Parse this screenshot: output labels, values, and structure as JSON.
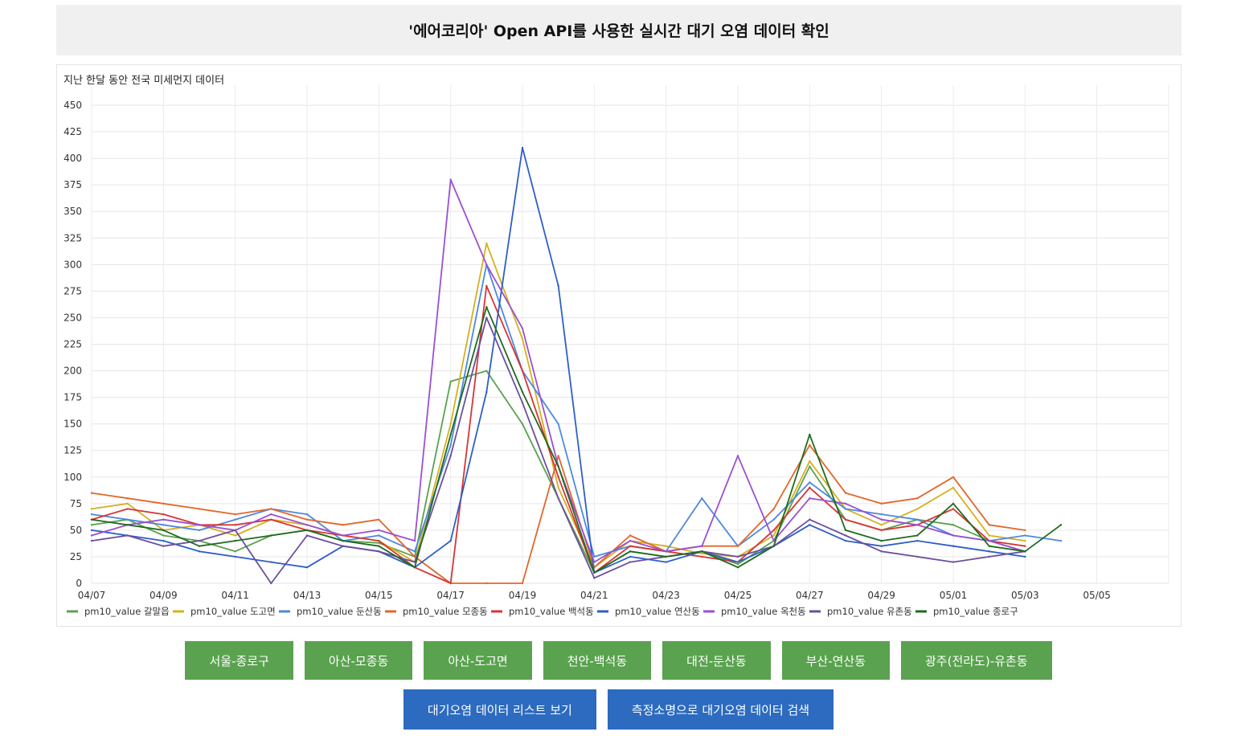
{
  "page_title": "'에어코리아' Open API를 사용한 실시간 대기 오염 데이터 확인",
  "buttons_regions": [
    "서울-종로구",
    "아산-모종동",
    "아산-도고면",
    "천안-백석동",
    "대전-둔산동",
    "부산-연산동",
    "광주(전라도)-유촌동"
  ],
  "buttons_actions": [
    "대기오염 데이터 리스트 보기",
    "측정소명으로 대기오염 데이터 검색"
  ],
  "colors": {
    "green_button": "#5aa24f",
    "blue_button": "#2c6bbf"
  },
  "chart_data": {
    "type": "line",
    "title": "지난 한달 동안 전국 미세먼지 데이터",
    "xlabel": "",
    "ylabel": "",
    "ylim": [
      0,
      450
    ],
    "yticks": [
      0,
      25,
      50,
      75,
      100,
      125,
      150,
      175,
      200,
      225,
      250,
      275,
      300,
      325,
      350,
      375,
      400,
      425,
      450
    ],
    "xlim": [
      "04/07",
      "05/06"
    ],
    "xticks": [
      "04/07",
      "04/09",
      "04/11",
      "04/13",
      "04/15",
      "04/17",
      "04/19",
      "04/21",
      "04/23",
      "04/25",
      "04/27",
      "04/29",
      "05/01",
      "05/03",
      "05/05"
    ],
    "grid": true,
    "legend": "bottom-left",
    "x": [
      "04/07",
      "04/08",
      "04/09",
      "04/10",
      "04/11",
      "04/12",
      "04/13",
      "04/14",
      "04/15",
      "04/16",
      "04/17",
      "04/18",
      "04/19",
      "04/20",
      "04/21",
      "04/22",
      "04/23",
      "04/24",
      "04/25",
      "04/26",
      "04/27",
      "04/28",
      "04/29",
      "04/30",
      "05/01",
      "05/02",
      "05/03",
      "05/04"
    ],
    "series": [
      {
        "name": "pm10_value 갈말읍",
        "color": "#5aa24f",
        "values": [
          55,
          60,
          45,
          40,
          30,
          45,
          50,
          40,
          38,
          25,
          190,
          200,
          150,
          80,
          10,
          30,
          25,
          30,
          18,
          40,
          110,
          60,
          50,
          60,
          55,
          40,
          30,
          null
        ]
      },
      {
        "name": "pm10_value 도고면",
        "color": "#d4b01f",
        "values": [
          70,
          75,
          50,
          55,
          45,
          60,
          55,
          45,
          40,
          20,
          150,
          320,
          230,
          90,
          15,
          40,
          35,
          28,
          25,
          45,
          115,
          70,
          55,
          70,
          90,
          45,
          40,
          null
        ]
      },
      {
        "name": "pm10_value 둔산동",
        "color": "#4d88e0",
        "values": [
          65,
          60,
          55,
          50,
          60,
          70,
          65,
          40,
          45,
          30,
          130,
          300,
          200,
          150,
          25,
          35,
          30,
          80,
          35,
          60,
          95,
          70,
          65,
          60,
          45,
          40,
          45,
          40
        ]
      },
      {
        "name": "pm10_value 모종동",
        "color": "#e2672a",
        "values": [
          85,
          80,
          75,
          70,
          65,
          70,
          60,
          55,
          60,
          25,
          0,
          0,
          0,
          120,
          15,
          45,
          30,
          35,
          35,
          70,
          130,
          85,
          75,
          80,
          100,
          55,
          50,
          null
        ]
      },
      {
        "name": "pm10_value 백석동",
        "color": "#d83434",
        "values": [
          60,
          70,
          65,
          55,
          55,
          60,
          50,
          45,
          40,
          15,
          0,
          280,
          200,
          100,
          10,
          35,
          30,
          25,
          20,
          50,
          90,
          60,
          50,
          55,
          70,
          40,
          35,
          null
        ]
      },
      {
        "name": "pm10_value 연산동",
        "color": "#2d5fc6",
        "values": [
          50,
          45,
          40,
          30,
          25,
          20,
          15,
          35,
          30,
          15,
          40,
          180,
          410,
          280,
          10,
          25,
          20,
          30,
          20,
          35,
          55,
          40,
          35,
          40,
          35,
          30,
          25,
          null
        ]
      },
      {
        "name": "pm10_value 옥천동",
        "color": "#9b4fd1",
        "values": [
          45,
          55,
          60,
          55,
          50,
          65,
          55,
          45,
          50,
          40,
          380,
          300,
          240,
          110,
          20,
          40,
          30,
          35,
          120,
          40,
          80,
          75,
          60,
          55,
          45,
          40,
          30,
          null
        ]
      },
      {
        "name": "pm10_value 유촌동",
        "color": "#6b4f9e",
        "values": [
          40,
          45,
          35,
          40,
          50,
          0,
          45,
          35,
          30,
          20,
          120,
          250,
          170,
          80,
          5,
          20,
          25,
          30,
          25,
          35,
          60,
          45,
          30,
          25,
          20,
          25,
          30,
          null
        ]
      },
      {
        "name": "pm10_value 종로구",
        "color": "#1f6b1f",
        "values": [
          60,
          55,
          50,
          35,
          40,
          45,
          50,
          40,
          35,
          15,
          140,
          260,
          180,
          110,
          10,
          30,
          25,
          30,
          15,
          35,
          140,
          50,
          40,
          45,
          75,
          35,
          30,
          55
        ]
      }
    ]
  }
}
